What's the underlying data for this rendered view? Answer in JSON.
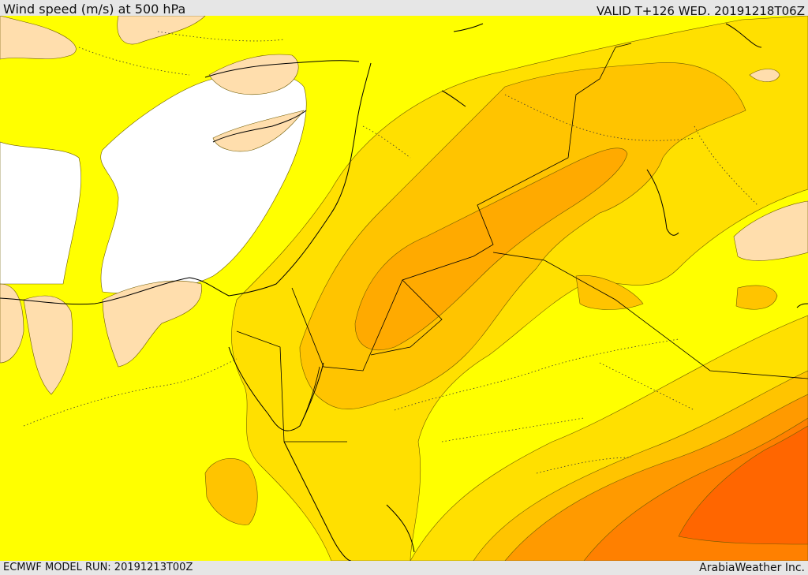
{
  "header": {
    "title": "Wind speed (m/s) at 500 hPa",
    "valid_time": "VALID T+126 WED. 20191218T06Z"
  },
  "footer": {
    "model_run": "ECMWF MODEL RUN: 20191213T00Z",
    "credit": "ArabiaWeather Inc."
  },
  "colors": {
    "band_10_15": "#ffffff",
    "band_15_20": "#ffdead",
    "band_20_25": "#ffff00",
    "band_25_30": "#ffe000",
    "band_30_35": "#ffc400",
    "band_35_40": "#ffaa00",
    "band_40_45": "#ff9a00",
    "band_45_50": "#ff8000",
    "band_50_55": "#ff6600",
    "coast": "#000000"
  }
}
